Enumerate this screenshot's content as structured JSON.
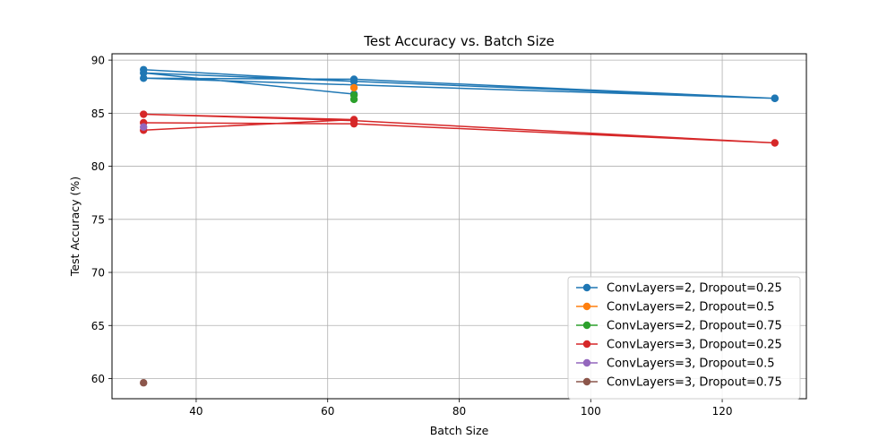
{
  "chart_data": {
    "type": "line",
    "title": "Test Accuracy vs. Batch Size",
    "xlabel": "Batch Size",
    "ylabel": "Test Accuracy (%)",
    "xlim": [
      27.2,
      132.8
    ],
    "ylim": [
      58.1,
      90.6
    ],
    "xticks": [
      40,
      60,
      80,
      100,
      120
    ],
    "yticks": [
      60,
      65,
      70,
      75,
      80,
      85,
      90
    ],
    "grid": true,
    "legend_position": "lower-right",
    "series": [
      {
        "name": "ConvLayers=2, Dropout=0.25",
        "color": "#1f77b4",
        "points": [
          {
            "x": 32,
            "y": 89.1
          },
          {
            "x": 64,
            "y": 88.0
          },
          {
            "x": 128,
            "y": 86.4
          },
          {
            "x": 32,
            "y": 88.3
          },
          {
            "x": 64,
            "y": 88.2
          },
          {
            "x": 128,
            "y": 86.4
          },
          {
            "x": 32,
            "y": 88.8
          },
          {
            "x": 64,
            "y": 86.8
          }
        ]
      },
      {
        "name": "ConvLayers=2, Dropout=0.5",
        "color": "#ff7f0e",
        "points": [
          {
            "x": 64,
            "y": 87.4
          }
        ]
      },
      {
        "name": "ConvLayers=2, Dropout=0.75",
        "color": "#2ca02c",
        "points": [
          {
            "x": 64,
            "y": 86.7
          },
          {
            "x": 64,
            "y": 86.3
          }
        ]
      },
      {
        "name": "ConvLayers=3, Dropout=0.25",
        "color": "#d62728",
        "points": [
          {
            "x": 32,
            "y": 83.4
          },
          {
            "x": 64,
            "y": 84.4
          },
          {
            "x": 32,
            "y": 84.9
          },
          {
            "x": 64,
            "y": 84.3
          },
          {
            "x": 128,
            "y": 82.2
          },
          {
            "x": 64,
            "y": 84.0
          },
          {
            "x": 32,
            "y": 84.1
          }
        ]
      },
      {
        "name": "ConvLayers=3, Dropout=0.5",
        "color": "#9467bd",
        "points": [
          {
            "x": 32,
            "y": 83.7
          }
        ]
      },
      {
        "name": "ConvLayers=3, Dropout=0.75",
        "color": "#8c564b",
        "points": [
          {
            "x": 32,
            "y": 59.6
          }
        ]
      }
    ]
  }
}
